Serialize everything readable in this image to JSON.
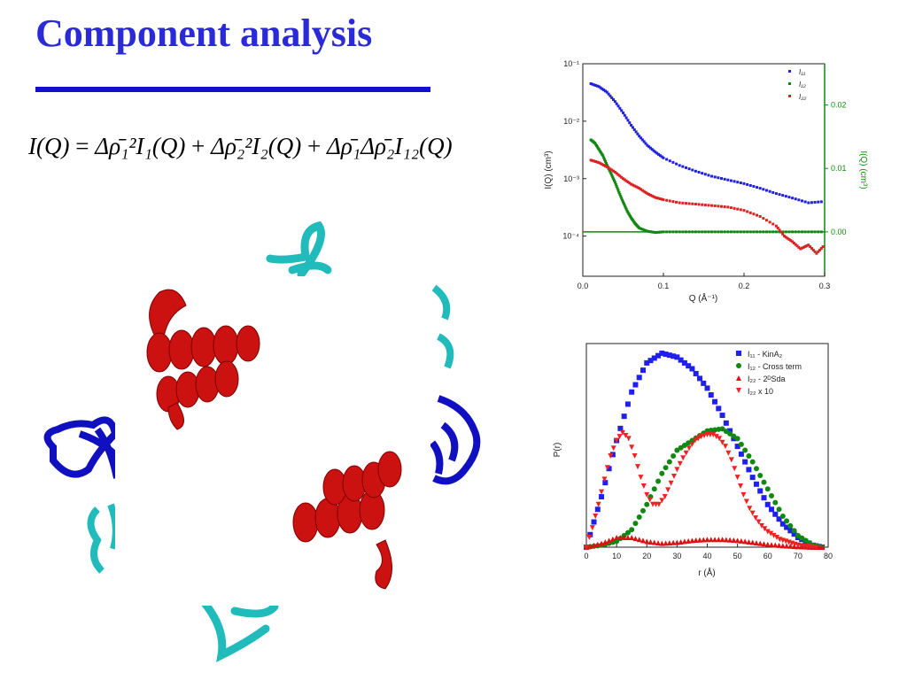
{
  "slide": {
    "title": "Component analysis",
    "equation": {
      "lhs": "I(Q)",
      "eq": "=",
      "term1": "Δρ̄₁²I₁(Q)",
      "term2": "Δρ̄₂²I₂(Q)",
      "term3": "Δρ̄₁Δρ̄₂I₁₂(Q)"
    },
    "colors": {
      "title": "#2a2ad8",
      "rule": "#1010d0",
      "helix": "#cc1111",
      "sheet_blue": "#1010c0",
      "sheet_cyan": "#22bbbb"
    }
  },
  "chart_data": [
    {
      "type": "scatter",
      "xlabel": "Q (Å⁻¹)",
      "ylabel": "I(Q) (cm³)",
      "y2label": "I(Q) (cm³)",
      "xlim": [
        0.0,
        0.3
      ],
      "ylim_log": [
        2e-05,
        0.1
      ],
      "y2lim": [
        -0.007,
        0.0265
      ],
      "xticks": [
        "0.0",
        "0.1",
        "0.2",
        "0.3"
      ],
      "yticks": [
        "10⁻¹",
        "10⁻²",
        "10⁻³",
        "10⁻⁴"
      ],
      "y2ticks": [
        "0.00",
        "0.01",
        "0.02"
      ],
      "legend_position": "top-right",
      "series": [
        {
          "name": "I₁₁",
          "axis": "left-log",
          "color": "#2020dd",
          "x": [
            0.01,
            0.02,
            0.03,
            0.04,
            0.05,
            0.06,
            0.07,
            0.08,
            0.09,
            0.1,
            0.12,
            0.14,
            0.16,
            0.18,
            0.2,
            0.22,
            0.24,
            0.26,
            0.28,
            0.3
          ],
          "y": [
            0.045,
            0.04,
            0.032,
            0.022,
            0.014,
            0.0085,
            0.0055,
            0.0038,
            0.0029,
            0.0023,
            0.0017,
            0.00135,
            0.0011,
            0.00095,
            0.00082,
            0.00068,
            0.00055,
            0.00046,
            0.00038,
            0.0004
          ]
        },
        {
          "name": "I₁₂",
          "axis": "right-linear",
          "color": "#118811",
          "x": [
            0.01,
            0.015,
            0.02,
            0.025,
            0.03,
            0.035,
            0.04,
            0.045,
            0.05,
            0.055,
            0.06,
            0.065,
            0.07,
            0.08,
            0.09,
            0.1,
            0.12,
            0.14,
            0.16,
            0.18,
            0.2,
            0.22,
            0.24,
            0.26,
            0.28,
            0.3
          ],
          "y": [
            0.0145,
            0.014,
            0.013,
            0.012,
            0.0105,
            0.0092,
            0.0078,
            0.0062,
            0.0047,
            0.0033,
            0.0022,
            0.0013,
            0.0006,
            0.0001,
            -0.0001,
            0.0,
            0.0,
            0.0,
            0.0,
            0.0,
            0.0,
            0.0,
            0.0,
            0.0,
            0.0,
            0.0
          ]
        },
        {
          "name": "I₂₂",
          "axis": "left-log",
          "color": "#dd2020",
          "x": [
            0.01,
            0.02,
            0.03,
            0.04,
            0.05,
            0.06,
            0.07,
            0.08,
            0.09,
            0.1,
            0.12,
            0.14,
            0.16,
            0.18,
            0.2,
            0.22,
            0.24,
            0.25,
            0.26,
            0.27,
            0.28,
            0.29,
            0.3
          ],
          "y": [
            0.0021,
            0.0019,
            0.0016,
            0.0013,
            0.001,
            0.0008,
            0.00068,
            0.00055,
            0.00047,
            0.00043,
            0.00038,
            0.00036,
            0.00034,
            0.00032,
            0.00028,
            0.00022,
            0.00015,
            0.0001,
            8e-05,
            6e-05,
            7e-05,
            5e-05,
            7e-05
          ]
        }
      ]
    },
    {
      "type": "scatter",
      "xlabel": "r (Å)",
      "ylabel": "P(r)",
      "xlim": [
        0,
        80
      ],
      "ylim": [
        0,
        1.05
      ],
      "xticks": [
        "0",
        "10",
        "20",
        "30",
        "40",
        "50",
        "60",
        "70",
        "80"
      ],
      "legend_position": "top-right",
      "series": [
        {
          "name": "I₁₁ - KinA₂",
          "marker": "square",
          "color": "#2020ee",
          "x": [
            0,
            5,
            10,
            15,
            20,
            25,
            30,
            35,
            40,
            45,
            50,
            55,
            60,
            65,
            70,
            75,
            78
          ],
          "y": [
            0.0,
            0.26,
            0.55,
            0.8,
            0.95,
            1.0,
            0.98,
            0.92,
            0.82,
            0.68,
            0.52,
            0.36,
            0.22,
            0.12,
            0.05,
            0.01,
            0.0
          ]
        },
        {
          "name": "I₁₂ - Cross term",
          "marker": "circle",
          "color": "#118811",
          "x": [
            0,
            5,
            10,
            15,
            20,
            25,
            30,
            35,
            40,
            45,
            50,
            55,
            60,
            65,
            70,
            75,
            78
          ],
          "y": [
            0.0,
            0.01,
            0.03,
            0.09,
            0.22,
            0.38,
            0.5,
            0.55,
            0.6,
            0.61,
            0.56,
            0.44,
            0.3,
            0.16,
            0.06,
            0.01,
            0.0
          ]
        },
        {
          "name": "I₂₂ - 2ᴰSda",
          "marker": "triangle-up",
          "color": "#dd1111",
          "x": [
            0,
            5,
            10,
            15,
            20,
            25,
            30,
            35,
            40,
            45,
            50,
            55,
            60,
            65,
            70,
            75,
            78
          ],
          "y": [
            0.0,
            0.02,
            0.05,
            0.05,
            0.03,
            0.02,
            0.025,
            0.035,
            0.04,
            0.04,
            0.035,
            0.025,
            0.015,
            0.008,
            0.003,
            0.0,
            0.0
          ]
        },
        {
          "name": "I₂₂ x 10",
          "marker": "triangle-down",
          "color": "#ee2222",
          "x": [
            0,
            2,
            4,
            6,
            8,
            10,
            12,
            14,
            16,
            18,
            20,
            22,
            24,
            26,
            28,
            30,
            32,
            34,
            36,
            38,
            40,
            42,
            44,
            46,
            48,
            50,
            52,
            54,
            56,
            58,
            60,
            62,
            64,
            66,
            68,
            70,
            72,
            74,
            76
          ],
          "y": [
            0.0,
            0.1,
            0.22,
            0.35,
            0.47,
            0.55,
            0.59,
            0.56,
            0.47,
            0.36,
            0.27,
            0.22,
            0.22,
            0.26,
            0.33,
            0.4,
            0.46,
            0.51,
            0.55,
            0.57,
            0.58,
            0.58,
            0.56,
            0.52,
            0.45,
            0.36,
            0.27,
            0.2,
            0.15,
            0.11,
            0.08,
            0.06,
            0.04,
            0.03,
            0.02,
            0.01,
            0.005,
            0.002,
            0.0
          ]
        }
      ]
    }
  ]
}
